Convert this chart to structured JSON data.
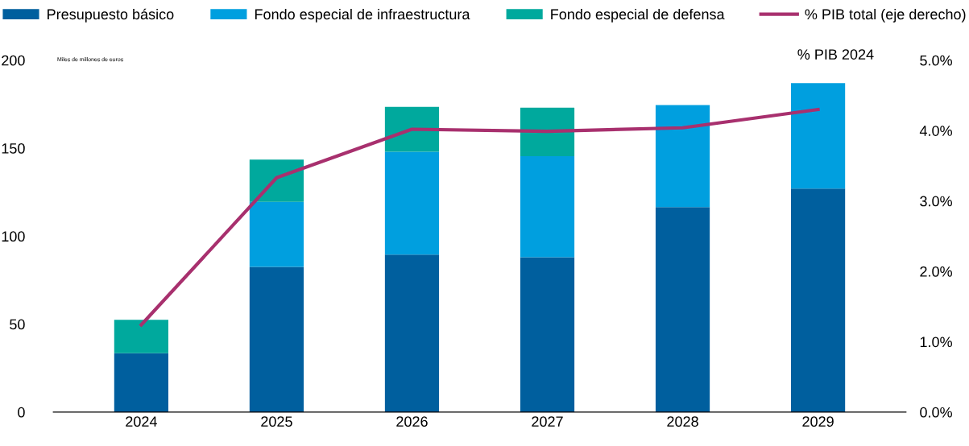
{
  "chart_data": {
    "type": "bar",
    "stacked": true,
    "categories": [
      "2024",
      "2025",
      "2026",
      "2027",
      "2028",
      "2029"
    ],
    "series": [
      {
        "name": "Presupuesto básico",
        "color": "#005f9e",
        "values": [
          33.5,
          82.5,
          89.5,
          88,
          116.5,
          127
        ]
      },
      {
        "name": "Fondo especial de infraestructura",
        "color": "#009fdf",
        "values": [
          null,
          37,
          58.5,
          57.5,
          58,
          60
        ]
      },
      {
        "name": "Fondo especial de defensa",
        "color": "#00a99d",
        "values": [
          19,
          24,
          25.5,
          27.5,
          null,
          null
        ]
      },
      {
        "name": "% PIB total (eje derecho)",
        "type": "line",
        "axis": "y2",
        "color": "#a8306e",
        "values": [
          1.24,
          3.33,
          4.02,
          3.99,
          4.04,
          4.3
        ]
      }
    ],
    "ylim": [
      0,
      200
    ],
    "yticks": [
      0,
      50,
      100,
      150,
      200
    ],
    "y2lim": [
      0,
      5
    ],
    "y2ticks": [
      {
        "value": 0,
        "label": "0.0%"
      },
      {
        "value": 1,
        "label": "1.0%"
      },
      {
        "value": 2,
        "label": "2.0%"
      },
      {
        "value": 3,
        "label": "3.0%"
      },
      {
        "value": 4,
        "label": "4.0%"
      },
      {
        "value": 5,
        "label": "5.0%"
      }
    ],
    "annotations": [
      "Miles de millones de euros",
      "% PIB 2024"
    ],
    "legend": "top",
    "grid": false,
    "marker": "none"
  }
}
